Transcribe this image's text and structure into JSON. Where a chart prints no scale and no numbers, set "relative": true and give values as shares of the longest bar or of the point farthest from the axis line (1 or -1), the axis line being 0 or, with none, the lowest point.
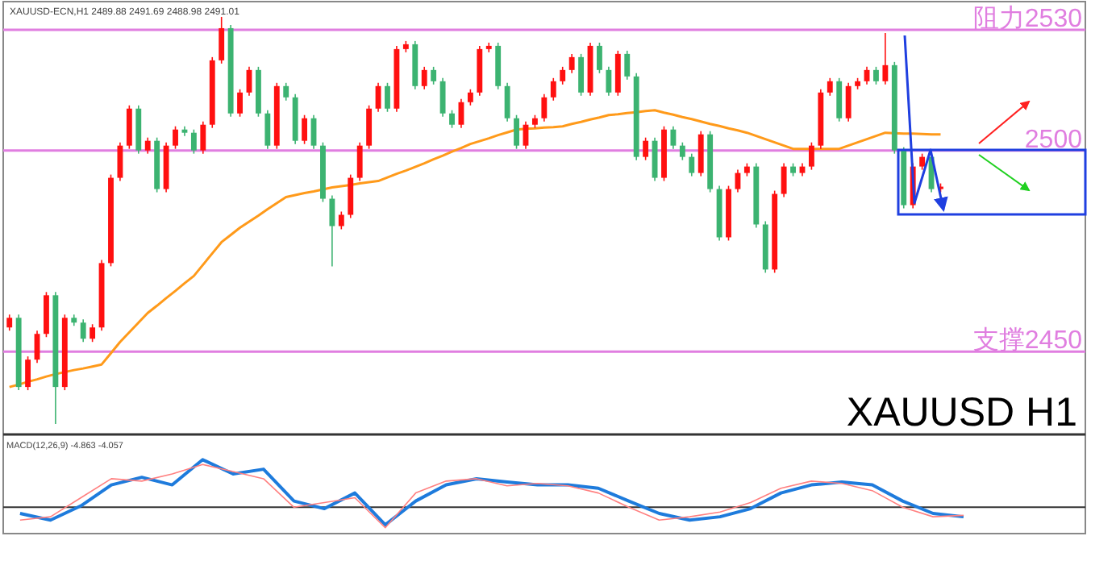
{
  "chart_data": [
    {
      "type": "candlestick",
      "title": "XAUUSD-ECN,H1 2489.88 2491.69 2488.98 2491.01",
      "categories": [
        null,
        null,
        null,
        null,
        null,
        null,
        null,
        null,
        null,
        null,
        null,
        null,
        null,
        null,
        null,
        null,
        null,
        null,
        null,
        null,
        null,
        null,
        null,
        null,
        null,
        null,
        null,
        null,
        null,
        null,
        null,
        null,
        null,
        null,
        null,
        null,
        null,
        null,
        null,
        null,
        null,
        null,
        null,
        null,
        null,
        null,
        null,
        null,
        null,
        null,
        null,
        null,
        null,
        null,
        null,
        null,
        null,
        null,
        null,
        null,
        null,
        null,
        null,
        null,
        null,
        null,
        null,
        null,
        null,
        null,
        null,
        null,
        null,
        null,
        null,
        null,
        null,
        null,
        null,
        null,
        null,
        null,
        null,
        null,
        null,
        null,
        null,
        null,
        null,
        null,
        null,
        null,
        null,
        null,
        null,
        null,
        null,
        null,
        null,
        null,
        null,
        null
      ],
      "ohlc": [
        [
          2456.0,
          2459.2,
          2455.2,
          2458.4
        ],
        [
          2458.4,
          2459.2,
          2440.4,
          2441.2
        ],
        [
          2441.2,
          2448.8,
          2440.4,
          2448.0
        ],
        [
          2448.0,
          2455.2,
          2447.2,
          2454.4
        ],
        [
          2454.4,
          2464.8,
          2453.6,
          2464.0
        ],
        [
          2464.0,
          2464.8,
          2432.0,
          2441.2
        ],
        [
          2441.2,
          2459.2,
          2440.4,
          2458.4
        ],
        [
          2458.4,
          2459.2,
          2456.4,
          2457.2
        ],
        [
          2457.2,
          2458.0,
          2452.4,
          2453.2
        ],
        [
          2453.2,
          2456.8,
          2452.4,
          2456.0
        ],
        [
          2456.0,
          2472.8,
          2455.2,
          2472.0
        ],
        [
          2472.0,
          2494.0,
          2471.2,
          2493.2
        ],
        [
          2493.2,
          2502.0,
          2492.4,
          2501.2
        ],
        [
          2501.2,
          2511.2,
          2500.4,
          2510.4
        ],
        [
          2510.4,
          2511.2,
          2499.2,
          2500.0
        ],
        [
          2500.0,
          2503.2,
          2499.2,
          2502.4
        ],
        [
          2502.4,
          2503.2,
          2489.6,
          2490.4
        ],
        [
          2490.4,
          2502.0,
          2489.6,
          2501.2
        ],
        [
          2501.2,
          2506.0,
          2500.4,
          2505.2
        ],
        [
          2505.2,
          2506.0,
          2503.6,
          2504.4
        ],
        [
          2504.4,
          2505.2,
          2499.2,
          2500.0
        ],
        [
          2500.0,
          2507.2,
          2499.2,
          2506.4
        ],
        [
          2506.4,
          2523.2,
          2505.6,
          2522.4
        ],
        [
          2522.4,
          2533.2,
          2521.6,
          2530.4
        ],
        [
          2530.4,
          2531.2,
          2508.4,
          2509.2
        ],
        [
          2509.2,
          2515.2,
          2508.4,
          2514.4
        ],
        [
          2514.4,
          2520.8,
          2513.6,
          2520.0
        ],
        [
          2520.0,
          2520.8,
          2508.4,
          2509.2
        ],
        [
          2509.2,
          2510.0,
          2500.4,
          2501.2
        ],
        [
          2501.2,
          2516.8,
          2500.4,
          2516.0
        ],
        [
          2516.0,
          2516.8,
          2512.4,
          2513.2
        ],
        [
          2513.2,
          2514.0,
          2501.6,
          2502.4
        ],
        [
          2502.4,
          2508.8,
          2501.6,
          2508.0
        ],
        [
          2508.0,
          2508.8,
          2500.4,
          2501.2
        ],
        [
          2501.2,
          2502.0,
          2487.2,
          2488.0
        ],
        [
          2488.0,
          2488.8,
          2471.2,
          2481.2
        ],
        [
          2481.2,
          2484.8,
          2480.4,
          2484.0
        ],
        [
          2484.0,
          2494.0,
          2483.2,
          2493.2
        ],
        [
          2493.2,
          2502.0,
          2492.4,
          2501.2
        ],
        [
          2501.2,
          2511.2,
          2500.4,
          2510.4
        ],
        [
          2510.4,
          2516.8,
          2509.6,
          2516.0
        ],
        [
          2516.0,
          2516.8,
          2509.6,
          2510.4
        ],
        [
          2510.4,
          2526.0,
          2509.6,
          2525.2
        ],
        [
          2525.2,
          2527.2,
          2524.4,
          2526.4
        ],
        [
          2526.4,
          2527.2,
          2515.2,
          2516.0
        ],
        [
          2516.0,
          2520.8,
          2515.2,
          2520.0
        ],
        [
          2520.0,
          2520.8,
          2516.4,
          2517.2
        ],
        [
          2517.2,
          2518.0,
          2508.4,
          2509.2
        ],
        [
          2509.2,
          2510.0,
          2505.6,
          2506.4
        ],
        [
          2506.4,
          2512.8,
          2505.6,
          2512.0
        ],
        [
          2512.0,
          2515.2,
          2511.2,
          2514.4
        ],
        [
          2514.4,
          2526.0,
          2513.6,
          2525.2
        ],
        [
          2525.2,
          2526.8,
          2524.4,
          2526.0
        ],
        [
          2526.0,
          2526.8,
          2515.2,
          2516.0
        ],
        [
          2516.0,
          2516.8,
          2507.2,
          2508.0
        ],
        [
          2508.0,
          2508.8,
          2500.4,
          2501.2
        ],
        [
          2501.2,
          2507.2,
          2500.4,
          2506.4
        ],
        [
          2506.4,
          2508.8,
          2505.6,
          2508.0
        ],
        [
          2508.0,
          2514.0,
          2507.2,
          2513.2
        ],
        [
          2513.2,
          2518.0,
          2512.4,
          2517.2
        ],
        [
          2517.2,
          2520.8,
          2516.4,
          2520.0
        ],
        [
          2520.0,
          2524.0,
          2519.2,
          2523.2
        ],
        [
          2523.2,
          2524.0,
          2513.6,
          2514.4
        ],
        [
          2514.4,
          2526.8,
          2513.6,
          2526.0
        ],
        [
          2526.0,
          2526.8,
          2519.2,
          2520.0
        ],
        [
          2520.0,
          2520.8,
          2513.6,
          2514.4
        ],
        [
          2514.4,
          2524.8,
          2513.6,
          2524.0
        ],
        [
          2524.0,
          2524.8,
          2517.6,
          2518.4
        ],
        [
          2518.4,
          2519.2,
          2497.6,
          2498.4
        ],
        [
          2498.4,
          2503.2,
          2497.6,
          2502.4
        ],
        [
          2502.4,
          2503.2,
          2492.4,
          2493.2
        ],
        [
          2493.2,
          2506.0,
          2492.4,
          2505.2
        ],
        [
          2505.2,
          2506.0,
          2500.4,
          2501.2
        ],
        [
          2501.2,
          2502.0,
          2497.6,
          2498.4
        ],
        [
          2498.4,
          2499.2,
          2493.6,
          2494.4
        ],
        [
          2494.4,
          2504.8,
          2493.6,
          2504.0
        ],
        [
          2504.0,
          2504.8,
          2489.6,
          2490.4
        ],
        [
          2490.4,
          2491.2,
          2477.6,
          2478.4
        ],
        [
          2478.4,
          2491.2,
          2477.6,
          2490.4
        ],
        [
          2490.4,
          2495.2,
          2489.6,
          2494.4
        ],
        [
          2494.4,
          2496.8,
          2493.6,
          2496.0
        ],
        [
          2496.0,
          2496.8,
          2480.8,
          2481.6
        ],
        [
          2481.6,
          2482.4,
          2469.6,
          2470.4
        ],
        [
          2470.4,
          2490.0,
          2469.6,
          2489.2
        ],
        [
          2489.2,
          2496.8,
          2488.4,
          2496.0
        ],
        [
          2496.0,
          2496.8,
          2493.6,
          2494.4
        ],
        [
          2494.4,
          2496.8,
          2493.6,
          2496.0
        ],
        [
          2496.0,
          2502.0,
          2495.2,
          2501.2
        ],
        [
          2501.2,
          2515.2,
          2500.4,
          2514.4
        ],
        [
          2514.4,
          2518.0,
          2513.6,
          2517.2
        ],
        [
          2517.2,
          2518.0,
          2507.2,
          2508.0
        ],
        [
          2508.0,
          2516.8,
          2507.2,
          2516.0
        ],
        [
          2516.0,
          2518.0,
          2515.2,
          2517.2
        ],
        [
          2517.2,
          2520.8,
          2516.4,
          2520.0
        ],
        [
          2520.0,
          2520.8,
          2516.4,
          2517.2
        ],
        [
          2517.2,
          2529.2,
          2516.4,
          2521.2
        ],
        [
          2521.2,
          2522.0,
          2499.2,
          2500.0
        ],
        [
          2500.0,
          2500.8,
          2485.6,
          2486.4
        ],
        [
          2486.4,
          2496.8,
          2485.6,
          2496.0
        ],
        [
          2496.0,
          2499.2,
          2495.2,
          2498.4
        ],
        [
          2498.4,
          2499.2,
          2489.6,
          2490.4
        ],
        [
          2490.4,
          2491.8,
          2489.6,
          2491.0
        ]
      ],
      "series": [
        {
          "type": "line",
          "color": "#ff9a1a",
          "values": [
            2441.2,
            2441.8,
            2442.5,
            2443.1,
            2443.8,
            2444.4,
            2444.9,
            2445.4,
            2445.8,
            2446.3,
            2446.8,
            2449.6,
            2452.4,
            2454.8,
            2457.2,
            2459.6,
            2461.4,
            2463.3,
            2465.1,
            2467.0,
            2468.8,
            2471.6,
            2474.4,
            2477.2,
            2479.0,
            2480.8,
            2482.3,
            2483.8,
            2485.4,
            2486.9,
            2488.4,
            2488.9,
            2489.4,
            2489.8,
            2490.3,
            2490.8,
            2491.1,
            2491.4,
            2491.8,
            2492.1,
            2492.4,
            2493.3,
            2494.2,
            2495.0,
            2495.9,
            2496.8,
            2497.8,
            2498.7,
            2499.7,
            2500.6,
            2501.6,
            2502.3,
            2503.0,
            2503.8,
            2504.5,
            2505.2,
            2505.4,
            2505.5,
            2505.7,
            2505.8,
            2506.0,
            2506.6,
            2507.1,
            2507.7,
            2508.2,
            2508.8,
            2509.0,
            2509.3,
            2509.5,
            2509.8,
            2510.0,
            2509.4,
            2508.9,
            2508.3,
            2507.8,
            2507.2,
            2506.6,
            2506.1,
            2505.5,
            2505.0,
            2504.4,
            2503.6,
            2502.8,
            2502.0,
            2501.2,
            2500.4,
            2500.4,
            2500.4,
            2500.4,
            2500.4,
            2500.4,
            2501.2,
            2502.0,
            2502.8,
            2503.6,
            2504.4,
            2504.3,
            2504.2,
            2504.2,
            2504.1,
            2504.0,
            2504.0
          ]
        }
      ],
      "ylim": [
        2430,
        2537
      ],
      "ref_lines": [
        {
          "axis": "y",
          "value": 2530,
          "label": "阻力2530",
          "color": "#e07ee0"
        },
        {
          "axis": "y",
          "value": 2500,
          "label": "2500",
          "color": "#e07ee0"
        },
        {
          "axis": "y",
          "value": 2450,
          "label": "支撑2450",
          "color": "#e07ee0"
        }
      ],
      "annotations": [
        "XAUUSD H1"
      ]
    },
    {
      "type": "line",
      "relative": true,
      "title": "MACD(12,26,9) -4.863 -4.057",
      "categories": [
        null,
        null,
        null,
        null,
        null,
        null,
        null,
        null,
        null,
        null,
        null,
        null,
        null,
        null,
        null,
        null,
        null,
        null,
        null,
        null,
        null,
        null,
        null,
        null,
        null,
        null,
        null,
        null,
        null,
        null,
        null,
        null
      ],
      "series": [
        {
          "color": "#ff8080",
          "values": [
            -0.27,
            -0.2,
            0.2,
            0.6,
            0.55,
            0.7,
            0.9,
            0.75,
            0.6,
            0.0,
            0.1,
            0.2,
            -0.43,
            0.3,
            0.55,
            0.6,
            0.45,
            0.5,
            0.45,
            0.3,
            0.0,
            -0.27,
            -0.2,
            -0.1,
            0.1,
            0.4,
            0.55,
            0.5,
            0.35,
            0.0,
            -0.2,
            -0.17
          ]
        },
        {
          "color": "#1e7bdc",
          "values": [
            -0.13,
            -0.27,
            0.03,
            0.47,
            0.63,
            0.47,
            1.0,
            0.7,
            0.8,
            0.13,
            -0.03,
            0.3,
            -0.37,
            0.13,
            0.47,
            0.6,
            0.53,
            0.47,
            0.47,
            0.4,
            0.13,
            -0.13,
            -0.27,
            -0.2,
            -0.03,
            0.3,
            0.47,
            0.53,
            0.47,
            0.13,
            -0.13,
            -0.2
          ]
        }
      ]
    }
  ]
}
